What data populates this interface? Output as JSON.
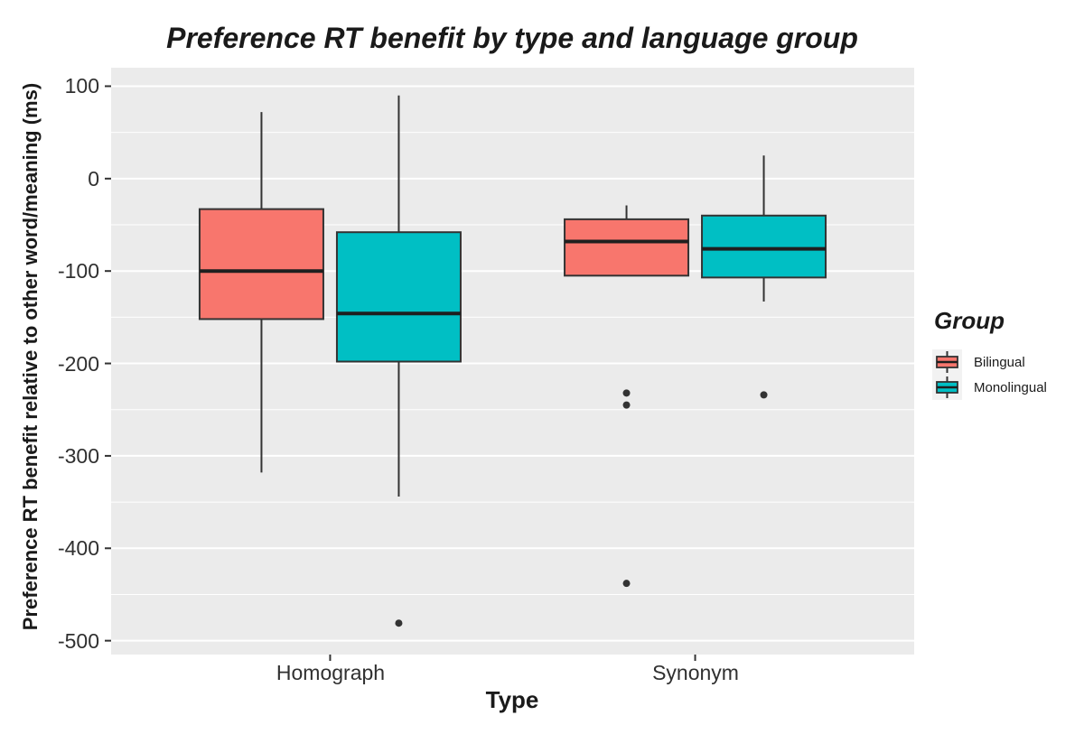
{
  "chart_data": {
    "type": "boxplot",
    "title": "Preference RT benefit by type and language group",
    "xlabel": "Type",
    "ylabel": "Preference RT benefit relative to other word/meaning (ms)",
    "categories": [
      "Homograph",
      "Synonym"
    ],
    "yticks": [
      100,
      0,
      -100,
      -200,
      -300,
      -400,
      -500
    ],
    "yticks_minor": [
      50,
      -50,
      -150,
      -250,
      -350,
      -450
    ],
    "ylim": [
      120,
      -515
    ],
    "grid": "on",
    "legend": {
      "title": "Group",
      "position": "right"
    },
    "series": [
      {
        "name": "Bilingual",
        "color": "#F8766D",
        "boxes": [
          {
            "category": "Homograph",
            "whisker_low": -318,
            "q1": -152,
            "median": -100,
            "q3": -33,
            "whisker_high": 72,
            "outliers": []
          },
          {
            "category": "Synonym",
            "whisker_low": -105,
            "q1": -105,
            "median": -68,
            "q3": -44,
            "whisker_high": -29,
            "outliers": [
              -232,
              -245,
              -438
            ]
          }
        ]
      },
      {
        "name": "Monolingual",
        "color": "#00BFC4",
        "boxes": [
          {
            "category": "Homograph",
            "whisker_low": -344,
            "q1": -198,
            "median": -146,
            "q3": -58,
            "whisker_high": 90,
            "outliers": [
              -481
            ]
          },
          {
            "category": "Synonym",
            "whisker_low": -133,
            "q1": -107,
            "median": -76,
            "q3": -40,
            "whisker_high": 25,
            "outliers": [
              -234
            ]
          }
        ]
      }
    ],
    "colors": {
      "panel_bg": "#EBEBEB",
      "grid": "#FFFFFF",
      "box_border": "#333333",
      "median_line": "#1f1f1f",
      "outlier": "#333333",
      "axis_tick": "#333333"
    }
  }
}
